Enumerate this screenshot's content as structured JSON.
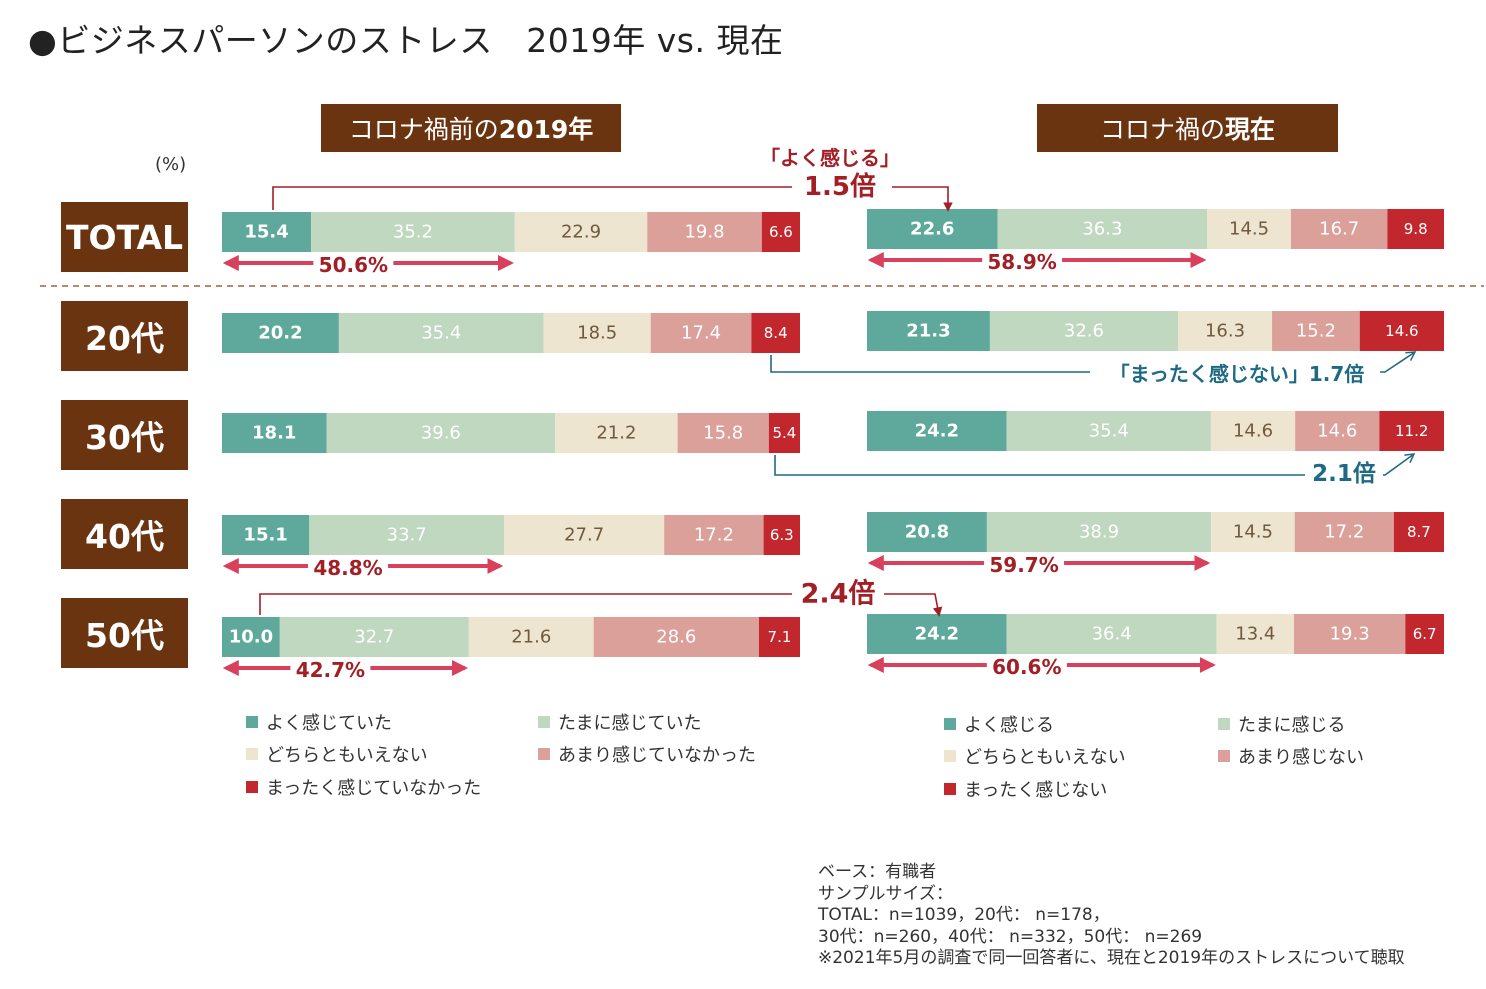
{
  "title": "●ビジネスパーソンのストレス　2019年 vs. 現在",
  "header_left": {
    "normal": "コロナ禍前の",
    "bold": "2019年"
  },
  "header_right": {
    "normal": "コロナ禍の",
    "bold": "現在"
  },
  "unit_label": "(%)",
  "row_labels": [
    "TOTAL",
    "20代",
    "30代",
    "40代",
    "50代"
  ],
  "colors": {
    "often": "#5ea99b",
    "sometimes": "#c0d7c0",
    "neutral": "#ede5d0",
    "rarely": "#dca09a",
    "never": "#c1272d",
    "header_bg": "#6b3410",
    "arrow_pink": "#d9405c",
    "callout_red": "#a11f25",
    "callout_blue": "#1e6a82"
  },
  "legend_left": [
    "よく感じていた",
    "たまに感じていた",
    "どちらともいえない",
    "あまり感じていなかった",
    "まったく感じていなかった"
  ],
  "legend_right": [
    "よく感じる",
    "たまに感じる",
    "どちらともいえない",
    "あまり感じない",
    "まったく感じない"
  ],
  "chart_data": [
    {
      "type": "bar",
      "stacked": true,
      "orientation": "horizontal",
      "title": "コロナ禍前の2019年",
      "categories": [
        "TOTAL",
        "20代",
        "30代",
        "40代",
        "50代"
      ],
      "series": [
        {
          "name": "よく感じていた",
          "values": [
            15.4,
            20.2,
            18.1,
            15.1,
            10.0
          ]
        },
        {
          "name": "たまに感じていた",
          "values": [
            35.2,
            35.4,
            39.6,
            33.7,
            32.7
          ]
        },
        {
          "name": "どちらともいえない",
          "values": [
            22.9,
            18.5,
            21.2,
            27.7,
            21.6
          ]
        },
        {
          "name": "あまり感じていなかった",
          "values": [
            19.8,
            17.4,
            15.8,
            17.2,
            28.6
          ]
        },
        {
          "name": "まったく感じていなかった",
          "values": [
            6.6,
            8.4,
            5.4,
            6.3,
            7.1
          ]
        }
      ],
      "summary_labels": {
        "TOTAL": "50.6%",
        "40代": "48.8%",
        "50代": "42.7%"
      }
    },
    {
      "type": "bar",
      "stacked": true,
      "orientation": "horizontal",
      "title": "コロナ禍の現在",
      "categories": [
        "TOTAL",
        "20代",
        "30代",
        "40代",
        "50代"
      ],
      "series": [
        {
          "name": "よく感じる",
          "values": [
            22.6,
            21.3,
            24.2,
            20.8,
            24.2
          ]
        },
        {
          "name": "たまに感じる",
          "values": [
            36.3,
            32.6,
            35.4,
            38.9,
            36.4
          ]
        },
        {
          "name": "どちらともいえない",
          "values": [
            14.5,
            16.3,
            14.6,
            14.5,
            13.4
          ]
        },
        {
          "name": "あまり感じない",
          "values": [
            16.7,
            15.2,
            14.6,
            17.2,
            19.3
          ]
        },
        {
          "name": "まったく感じない",
          "values": [
            9.8,
            14.6,
            11.2,
            8.7,
            6.7
          ]
        }
      ],
      "summary_labels": {
        "TOTAL": "58.9%",
        "40代": "59.7%",
        "50代": "60.6%"
      }
    }
  ],
  "callouts": {
    "total_label": "「よく感じる」",
    "total_ratio": "1.5倍",
    "age20_label": "「まったく感じない」1.7倍",
    "age30_ratio": "2.1倍",
    "age50_ratio": "2.4倍"
  },
  "footnote": [
    "ベース：有職者",
    "サンプルサイズ：",
    "TOTAL：n=1039，20代： n=178，",
    "30代：n=260，40代： n=332，50代： n=269",
    "※2021年5月の調査で同一回答者に、現在と2019年のストレスについて聴取"
  ]
}
